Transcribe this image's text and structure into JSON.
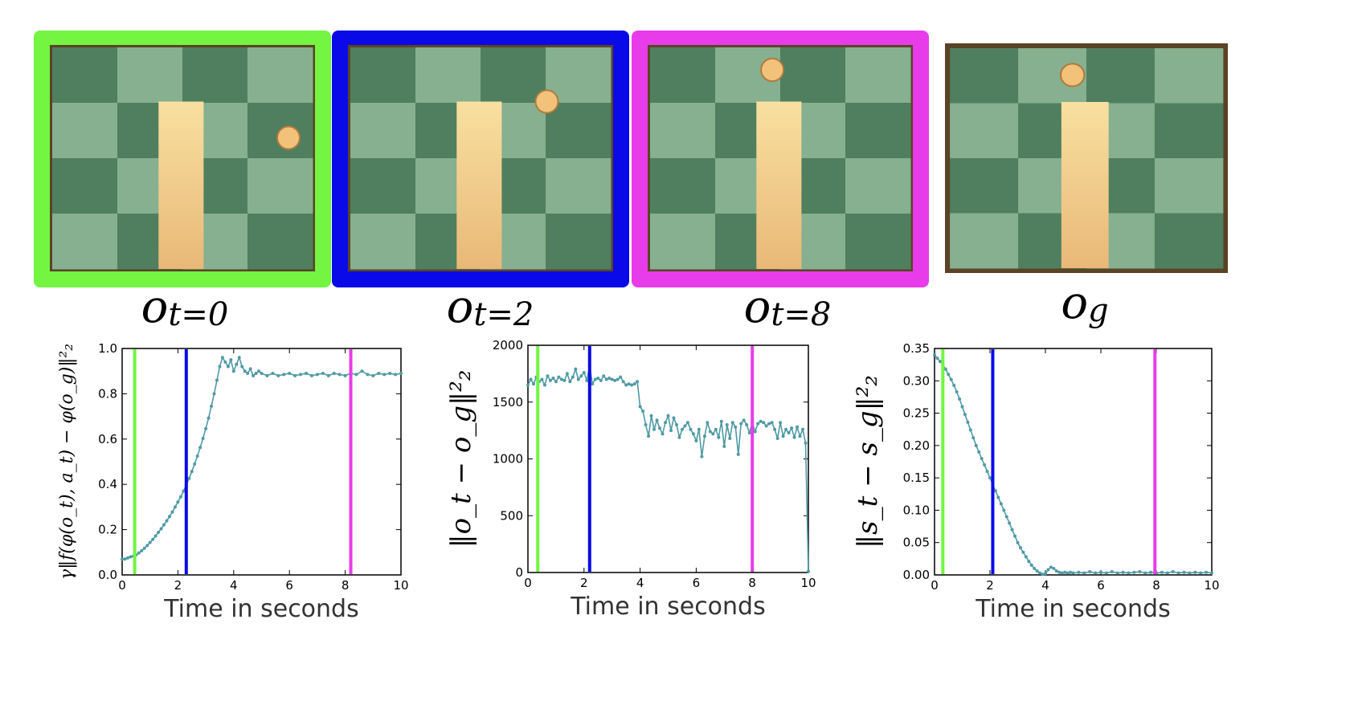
{
  "frames": [
    {
      "label_main": "o",
      "label_sub": "t=0",
      "border_color": "#73f542",
      "ball": [
        0.9,
        0.41
      ]
    },
    {
      "label_main": "o",
      "label_sub": "t=2",
      "border_color": "#0a0ae8",
      "ball": [
        0.75,
        0.25
      ]
    },
    {
      "label_main": "o",
      "label_sub": "t=8",
      "border_color": "#e83cea",
      "ball": [
        0.47,
        0.11
      ]
    },
    {
      "label_main": "o",
      "label_sub": "g",
      "border_color": "#5b4325",
      "ball": [
        0.45,
        0.13
      ]
    }
  ],
  "colors": {
    "series": "#4f9aa4",
    "marker_green": "#73f542",
    "marker_blue": "#0a0ae8",
    "marker_magenta": "#e83cea"
  },
  "chart_data": [
    {
      "type": "line",
      "title": "",
      "xlabel": "Time in seconds",
      "ylabel": "γ‖f(φ(o_t), a_t) − φ(o_g)‖²₂",
      "xlim": [
        0,
        10
      ],
      "ylim": [
        0,
        1.0
      ],
      "xticks": [
        "0",
        "2",
        "4",
        "6",
        "8",
        "10"
      ],
      "yticks": [
        "0.0",
        "0.2",
        "0.4",
        "0.6",
        "0.8",
        "1.0"
      ],
      "ytick_values": [
        0,
        0.2,
        0.4,
        0.6,
        0.8,
        1.0
      ],
      "vlines": [
        0.45,
        2.3,
        8.2
      ],
      "x": [
        0,
        0.1,
        0.2,
        0.3,
        0.4,
        0.5,
        0.6,
        0.7,
        0.8,
        0.9,
        1.0,
        1.1,
        1.2,
        1.3,
        1.4,
        1.5,
        1.6,
        1.7,
        1.8,
        1.9,
        2.0,
        2.1,
        2.2,
        2.3,
        2.4,
        2.5,
        2.6,
        2.7,
        2.8,
        2.9,
        3.0,
        3.1,
        3.2,
        3.3,
        3.4,
        3.5,
        3.6,
        3.7,
        3.8,
        3.9,
        4.0,
        4.1,
        4.2,
        4.3,
        4.4,
        4.5,
        4.6,
        4.7,
        4.8,
        4.9,
        5.0,
        5.2,
        5.4,
        5.6,
        5.8,
        6.0,
        6.2,
        6.4,
        6.6,
        6.8,
        7.0,
        7.2,
        7.4,
        7.6,
        7.8,
        8.0,
        8.2,
        8.4,
        8.6,
        8.8,
        9.0,
        9.2,
        9.4,
        9.6,
        9.8,
        10.0
      ],
      "y": [
        0.07,
        0.07,
        0.075,
        0.08,
        0.083,
        0.088,
        0.097,
        0.107,
        0.118,
        0.13,
        0.143,
        0.157,
        0.172,
        0.188,
        0.204,
        0.221,
        0.239,
        0.258,
        0.278,
        0.3,
        0.322,
        0.345,
        0.37,
        0.397,
        0.426,
        0.457,
        0.49,
        0.525,
        0.563,
        0.603,
        0.646,
        0.693,
        0.745,
        0.8,
        0.86,
        0.92,
        0.96,
        0.94,
        0.92,
        0.95,
        0.9,
        0.93,
        0.96,
        0.92,
        0.9,
        0.89,
        0.91,
        0.88,
        0.89,
        0.9,
        0.89,
        0.88,
        0.89,
        0.88,
        0.885,
        0.89,
        0.88,
        0.885,
        0.89,
        0.88,
        0.885,
        0.89,
        0.88,
        0.89,
        0.885,
        0.88,
        0.89,
        0.885,
        0.9,
        0.885,
        0.88,
        0.89,
        0.885,
        0.89,
        0.885,
        0.89
      ]
    },
    {
      "type": "line",
      "title": "",
      "xlabel": "Time in seconds",
      "ylabel": "‖o_t − o_g‖²₂",
      "xlim": [
        0,
        10
      ],
      "ylim": [
        0,
        2000
      ],
      "xticks": [
        "0",
        "2",
        "4",
        "6",
        "8",
        "10"
      ],
      "yticks": [
        "0",
        "500",
        "1000",
        "1500",
        "2000"
      ],
      "ytick_values": [
        0,
        500,
        1000,
        1500,
        2000
      ],
      "vlines": [
        0.35,
        2.2,
        8.0
      ],
      "x": [
        0,
        0.1,
        0.2,
        0.3,
        0.4,
        0.5,
        0.6,
        0.7,
        0.8,
        0.9,
        1.0,
        1.1,
        1.2,
        1.3,
        1.4,
        1.5,
        1.6,
        1.7,
        1.8,
        1.9,
        2.0,
        2.1,
        2.2,
        2.3,
        2.4,
        2.5,
        2.6,
        2.7,
        2.8,
        2.9,
        3.0,
        3.1,
        3.2,
        3.3,
        3.4,
        3.5,
        3.6,
        3.7,
        3.8,
        3.9,
        4.0,
        4.1,
        4.2,
        4.3,
        4.4,
        4.5,
        4.6,
        4.7,
        4.8,
        4.9,
        5.0,
        5.1,
        5.2,
        5.3,
        5.4,
        5.5,
        5.6,
        5.7,
        5.8,
        5.9,
        6.0,
        6.1,
        6.2,
        6.3,
        6.4,
        6.5,
        6.6,
        6.7,
        6.8,
        6.9,
        7.0,
        7.1,
        7.2,
        7.3,
        7.4,
        7.5,
        7.6,
        7.7,
        7.8,
        7.9,
        8.0,
        8.1,
        8.2,
        8.3,
        8.4,
        8.5,
        8.6,
        8.7,
        8.8,
        8.9,
        9.0,
        9.1,
        9.2,
        9.3,
        9.4,
        9.5,
        9.6,
        9.7,
        9.8,
        9.9,
        10.0
      ],
      "y": [
        1650,
        1700,
        1660,
        1720,
        1680,
        1700,
        1650,
        1730,
        1690,
        1710,
        1680,
        1720,
        1700,
        1690,
        1750,
        1680,
        1720,
        1790,
        1700,
        1730,
        1760,
        1690,
        1820,
        1660,
        1700,
        1710,
        1690,
        1730,
        1700,
        1710,
        1700,
        1690,
        1700,
        1720,
        1680,
        1650,
        1660,
        1650,
        1660,
        1680,
        1460,
        1420,
        1300,
        1200,
        1380,
        1260,
        1340,
        1270,
        1220,
        1320,
        1380,
        1250,
        1360,
        1300,
        1190,
        1260,
        1290,
        1320,
        1260,
        1220,
        1160,
        1260,
        1020,
        1200,
        1320,
        1240,
        1220,
        1260,
        1190,
        1330,
        1110,
        1300,
        1180,
        1320,
        1280,
        1040,
        1310,
        1340,
        1300,
        1230,
        1320,
        1240,
        1310,
        1330,
        1320,
        1290,
        1310,
        1320,
        1260,
        1180,
        1320,
        1200,
        1260,
        1230,
        1270,
        1190,
        1280,
        1200,
        1260,
        1140,
        10
      ]
    },
    {
      "type": "line",
      "title": "",
      "xlabel": "Time in seconds",
      "ylabel": "‖s_t − s_g‖²₂",
      "xlim": [
        0,
        10
      ],
      "ylim": [
        0,
        0.35
      ],
      "xticks": [
        "0",
        "2",
        "4",
        "6",
        "8",
        "10"
      ],
      "yticks": [
        "0.00",
        "0.05",
        "0.10",
        "0.15",
        "0.20",
        "0.25",
        "0.30",
        "0.35"
      ],
      "ytick_values": [
        0,
        0.05,
        0.1,
        0.15,
        0.2,
        0.25,
        0.3,
        0.35
      ],
      "vlines": [
        0.3,
        2.1,
        7.95
      ],
      "x": [
        0,
        0.1,
        0.2,
        0.3,
        0.4,
        0.5,
        0.6,
        0.7,
        0.8,
        0.9,
        1.0,
        1.1,
        1.2,
        1.3,
        1.4,
        1.5,
        1.6,
        1.7,
        1.8,
        1.9,
        2.0,
        2.1,
        2.2,
        2.3,
        2.4,
        2.5,
        2.6,
        2.7,
        2.8,
        2.9,
        3.0,
        3.1,
        3.2,
        3.3,
        3.4,
        3.5,
        3.6,
        3.7,
        3.8,
        3.9,
        4.0,
        4.1,
        4.2,
        4.3,
        4.4,
        4.5,
        4.6,
        4.7,
        4.8,
        4.9,
        5.0,
        5.2,
        5.4,
        5.6,
        5.8,
        6.0,
        6.2,
        6.4,
        6.6,
        6.8,
        7.0,
        7.2,
        7.4,
        7.6,
        7.8,
        8.0,
        8.2,
        8.4,
        8.6,
        8.8,
        9.0,
        9.2,
        9.4,
        9.6,
        9.8,
        10.0
      ],
      "y": [
        0.34,
        0.335,
        0.33,
        0.325,
        0.318,
        0.31,
        0.302,
        0.293,
        0.283,
        0.272,
        0.26,
        0.248,
        0.236,
        0.224,
        0.212,
        0.2,
        0.19,
        0.18,
        0.17,
        0.16,
        0.15,
        0.14,
        0.13,
        0.12,
        0.11,
        0.1,
        0.09,
        0.08,
        0.07,
        0.06,
        0.05,
        0.042,
        0.035,
        0.028,
        0.021,
        0.015,
        0.01,
        0.006,
        0.003,
        0.001,
        0.002,
        0.008,
        0.012,
        0.01,
        0.006,
        0.004,
        0.003,
        0.004,
        0.003,
        0.004,
        0.003,
        0.004,
        0.003,
        0.005,
        0.003,
        0.004,
        0.003,
        0.005,
        0.003,
        0.004,
        0.003,
        0.004,
        0.005,
        0.003,
        0.004,
        0.003,
        0.004,
        0.003,
        0.005,
        0.003,
        0.004,
        0.003,
        0.004,
        0.003,
        0.004,
        0.003
      ]
    }
  ]
}
